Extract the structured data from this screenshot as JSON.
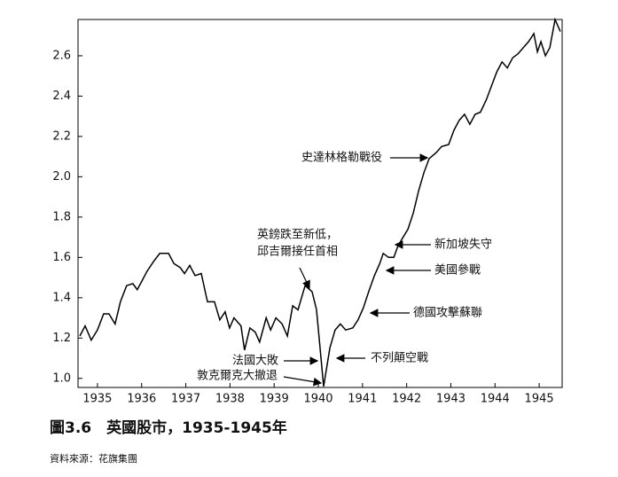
{
  "chart_data": {
    "type": "line",
    "color": "#000000",
    "x": [
      1934.6,
      1934.72,
      1934.86,
      1935.0,
      1935.14,
      1935.26,
      1935.4,
      1935.52,
      1935.66,
      1935.8,
      1935.9,
      1936.0,
      1936.12,
      1936.27,
      1936.41,
      1936.61,
      1936.73,
      1936.87,
      1936.97,
      1937.09,
      1937.21,
      1937.35,
      1937.49,
      1937.65,
      1937.77,
      1937.89,
      1937.99,
      1938.09,
      1938.25,
      1938.33,
      1938.45,
      1938.57,
      1938.67,
      1938.82,
      1938.92,
      1939.04,
      1939.18,
      1939.3,
      1939.42,
      1939.54,
      1939.7,
      1939.86,
      1939.96,
      1940.12,
      1940.26,
      1940.38,
      1940.5,
      1940.62,
      1940.78,
      1940.9,
      1941.02,
      1941.14,
      1941.27,
      1941.39,
      1941.47,
      1941.59,
      1941.71,
      1941.79,
      1941.89,
      1942.03,
      1942.15,
      1942.27,
      1942.39,
      1942.51,
      1942.67,
      1942.79,
      1942.95,
      1943.07,
      1943.19,
      1943.31,
      1943.43,
      1943.55,
      1943.67,
      1943.8,
      1943.92,
      1944.04,
      1944.16,
      1944.28,
      1944.4,
      1944.52,
      1944.64,
      1944.76,
      1944.88,
      1944.96,
      1945.04,
      1945.14,
      1945.24,
      1945.36,
      1945.48
    ],
    "values": [
      1.21,
      1.26,
      1.19,
      1.24,
      1.32,
      1.32,
      1.27,
      1.38,
      1.46,
      1.47,
      1.44,
      1.48,
      1.53,
      1.58,
      1.62,
      1.62,
      1.57,
      1.55,
      1.52,
      1.56,
      1.51,
      1.52,
      1.38,
      1.38,
      1.29,
      1.33,
      1.25,
      1.3,
      1.26,
      1.14,
      1.25,
      1.23,
      1.18,
      1.3,
      1.24,
      1.3,
      1.27,
      1.21,
      1.36,
      1.34,
      1.46,
      1.43,
      1.34,
      0.96,
      1.15,
      1.24,
      1.27,
      1.24,
      1.25,
      1.29,
      1.35,
      1.43,
      1.51,
      1.57,
      1.62,
      1.6,
      1.6,
      1.65,
      1.69,
      1.74,
      1.82,
      1.93,
      2.02,
      2.09,
      2.12,
      2.15,
      2.16,
      2.23,
      2.28,
      2.31,
      2.26,
      2.31,
      2.32,
      2.38,
      2.45,
      2.52,
      2.57,
      2.54,
      2.59,
      2.61,
      2.64,
      2.67,
      2.71,
      2.62,
      2.67,
      2.6,
      2.64,
      2.78,
      2.72
    ],
    "xlim": [
      1934.56,
      1945.52
    ],
    "xticks": [
      1935,
      1936,
      1937,
      1938,
      1939,
      1940,
      1941,
      1942,
      1943,
      1944,
      1945
    ],
    "ylim": [
      0.955,
      2.78
    ],
    "yticks": [
      {
        "value": 1.0,
        "label": "1.0"
      },
      1.2,
      1.4,
      1.6,
      1.8,
      {
        "value": 2.0,
        "label": "2.0"
      },
      2.2,
      2.4,
      2.6
    ],
    "annotations": [
      "史達林格勒戰役",
      "英鎊跌至新低，",
      "邱吉爾接任首相",
      "新加坡失守",
      "美國參戰",
      "德國攻擊蘇聯",
      "不列顛空戰",
      "法國大敗",
      "敦克爾克大撤退"
    ],
    "title": "圖3.6　英國股市，1935-1945年",
    "source": "資料來源：花旗集團"
  }
}
